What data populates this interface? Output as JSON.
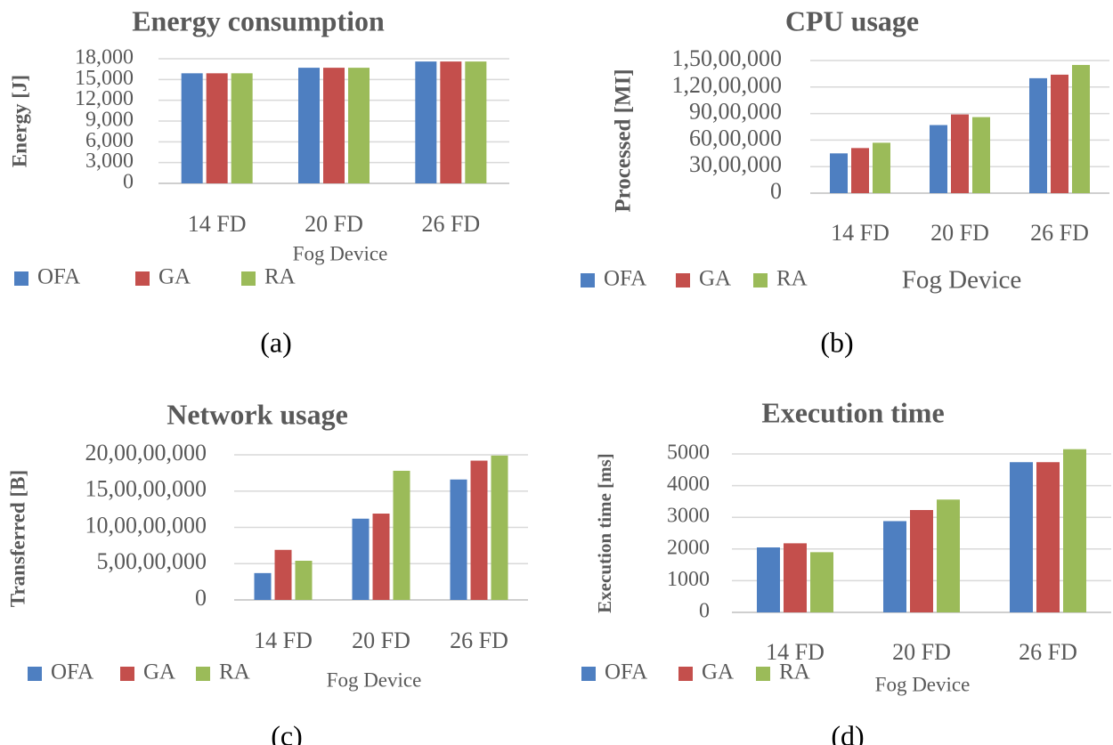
{
  "colors": {
    "OFA": "#4e7fc1",
    "GA": "#c44f4c",
    "RA": "#9bbb59",
    "grid": "#d9d9d9",
    "text": "#595959",
    "axis": "#bfbfbf"
  },
  "chart_data": [
    {
      "id": "a",
      "type": "bar",
      "title": "Energy consumption",
      "ylabel": "Energy [J]",
      "xlabel": "Fog Device",
      "panel_label": "(a)",
      "categories": [
        "14 FD",
        "20 FD",
        "26 FD"
      ],
      "series": [
        {
          "name": "OFA",
          "values": [
            15900,
            16700,
            17600
          ]
        },
        {
          "name": "GA",
          "values": [
            15900,
            16700,
            17600
          ]
        },
        {
          "name": "RA",
          "values": [
            15900,
            16700,
            17600
          ]
        }
      ],
      "ylim": [
        0,
        18000
      ],
      "yticks": [
        0,
        3000,
        6000,
        9000,
        12000,
        15000,
        18000
      ],
      "ytick_labels": [
        "0",
        "3,000",
        "6,000",
        "9,000",
        "12,000",
        "15,000",
        "18,000"
      ],
      "grid": true,
      "legend": "bottom"
    },
    {
      "id": "b",
      "type": "bar",
      "title": "CPU usage",
      "ylabel": "Processed [MI]",
      "xlabel": "Fog Device",
      "panel_label": "(b)",
      "categories": [
        "14 FD",
        "20 FD",
        "26 FD"
      ],
      "series": [
        {
          "name": "OFA",
          "values": [
            4500000,
            7700000,
            13000000
          ]
        },
        {
          "name": "GA",
          "values": [
            5100000,
            8900000,
            13400000
          ]
        },
        {
          "name": "RA",
          "values": [
            5700000,
            8600000,
            14500000
          ]
        }
      ],
      "ylim": [
        0,
        15000000
      ],
      "yticks": [
        0,
        3000000,
        6000000,
        9000000,
        12000000,
        15000000
      ],
      "ytick_labels": [
        "0",
        "30,00,000",
        "60,00,000",
        "90,00,000",
        "1,20,00,000",
        "1,50,00,000"
      ],
      "grid": true,
      "legend": "bottom"
    },
    {
      "id": "c",
      "type": "bar",
      "title": "Network usage",
      "ylabel": "Transferred [B]",
      "xlabel": "Fog Device",
      "panel_label": "(c)",
      "categories": [
        "14 FD",
        "20 FD",
        "26 FD"
      ],
      "series": [
        {
          "name": "OFA",
          "values": [
            37000000,
            112000000,
            166000000
          ]
        },
        {
          "name": "GA",
          "values": [
            69000000,
            119000000,
            192000000
          ]
        },
        {
          "name": "RA",
          "values": [
            54000000,
            178000000,
            199000000
          ]
        }
      ],
      "ylim": [
        0,
        200000000
      ],
      "yticks": [
        0,
        50000000,
        100000000,
        150000000,
        200000000
      ],
      "ytick_labels": [
        "0",
        "5,00,00,000",
        "10,00,00,000",
        "15,00,00,000",
        "20,00,00,000"
      ],
      "grid": true,
      "legend": "bottom"
    },
    {
      "id": "d",
      "type": "bar",
      "title": "Execution time",
      "ylabel": "Execution time [ms]",
      "xlabel": "Fog Device",
      "panel_label": "(d)",
      "categories": [
        "14 FD",
        "20 FD",
        "26 FD"
      ],
      "series": [
        {
          "name": "OFA",
          "values": [
            2050,
            2880,
            4740
          ]
        },
        {
          "name": "GA",
          "values": [
            2180,
            3230,
            4740
          ]
        },
        {
          "name": "RA",
          "values": [
            1900,
            3560,
            5150
          ]
        }
      ],
      "ylim": [
        0,
        5000
      ],
      "yticks": [
        0,
        1000,
        2000,
        3000,
        4000,
        5000
      ],
      "ytick_labels": [
        "0",
        "1000",
        "2000",
        "3000",
        "4000",
        "5000"
      ],
      "grid": true,
      "legend": "bottom"
    }
  ]
}
